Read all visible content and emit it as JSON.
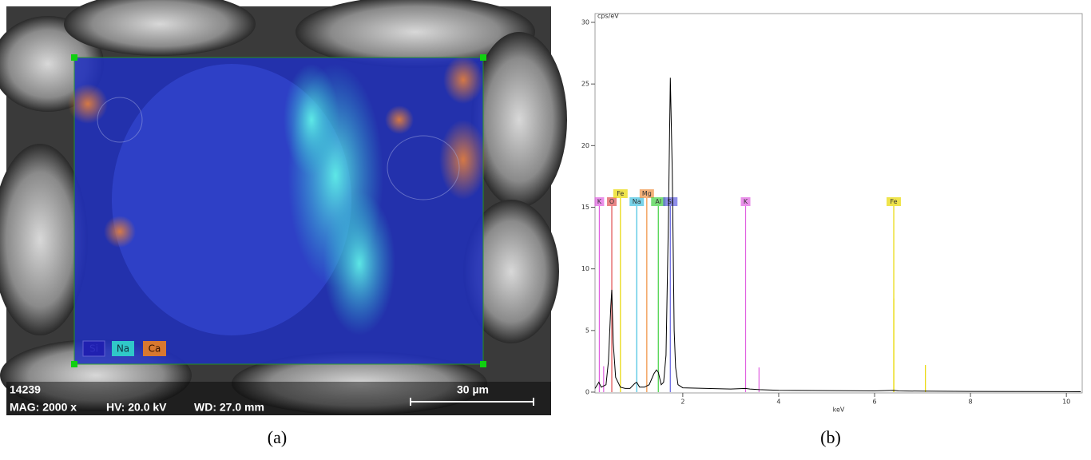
{
  "image_panel": {
    "legend": [
      "Si",
      "Na",
      "Ca"
    ],
    "sample_id": "14239",
    "magnification": "MAG: 2000 x",
    "voltage": "HV: 20.0 kV",
    "working_distance": "WD: 27.0 mm",
    "scale_bar": "30 µm"
  },
  "captions": [
    "(a)",
    "(b)"
  ],
  "chart_data": {
    "type": "line",
    "y_label": "cps/eV",
    "x_label": "keV",
    "xlim": [
      0.17,
      10.33
    ],
    "xticks": [
      2,
      4,
      6,
      8,
      10
    ],
    "ylim": [
      0,
      30
    ],
    "yticks": [
      0,
      5,
      10,
      15,
      20,
      25,
      30
    ],
    "series": [
      {
        "color": "#000000",
        "x": [
          0.17,
          0.25,
          0.3,
          0.4,
          0.45,
          0.5,
          0.52,
          0.55,
          0.6,
          0.7,
          0.8,
          0.9,
          1.0,
          1.04,
          1.1,
          1.2,
          1.3,
          1.4,
          1.45,
          1.49,
          1.55,
          1.6,
          1.65,
          1.7,
          1.74,
          1.78,
          1.82,
          1.85,
          1.9,
          2.0,
          2.5,
          3.0,
          3.31,
          3.4,
          3.6,
          4,
          5,
          6,
          6.4,
          6.5,
          7,
          8,
          9,
          10,
          10.3
        ],
        "values": [
          0.3,
          0.8,
          0.4,
          0.6,
          2.5,
          7,
          8.3,
          4,
          1.2,
          0.4,
          0.3,
          0.3,
          0.7,
          0.8,
          0.4,
          0.4,
          0.6,
          1.5,
          1.8,
          1.6,
          0.6,
          0.8,
          3,
          14,
          25.5,
          18,
          5,
          2,
          0.6,
          0.35,
          0.3,
          0.25,
          0.3,
          0.25,
          0.2,
          0.15,
          0.12,
          0.1,
          0.15,
          0.1,
          0.08,
          0.06,
          0.05,
          0.04,
          0.03
        ]
      }
    ],
    "element_lines": [
      {
        "label": "K",
        "x": 0.26,
        "color": "#e060e0"
      },
      {
        "label": "O",
        "x": 0.52,
        "color": "#e05050"
      },
      {
        "label": "Fe",
        "x": 0.7,
        "color": "#e8d800"
      },
      {
        "label": "Na",
        "x": 1.04,
        "color": "#40c0e0"
      },
      {
        "label": "Mg",
        "x": 1.25,
        "color": "#f09040"
      },
      {
        "label": "Al",
        "x": 1.49,
        "color": "#40d040"
      },
      {
        "label": "Si",
        "x": 1.74,
        "color": "#6060e0"
      },
      {
        "label": "K",
        "x": 3.31,
        "color": "#e060e0"
      },
      {
        "label": "Fe",
        "x": 6.4,
        "color": "#e8d800"
      }
    ],
    "minor_lines": [
      {
        "x": 0.35,
        "values": 2.1,
        "color": "#e060e0"
      },
      {
        "x": 3.59,
        "values": 2.0,
        "color": "#e060e0"
      },
      {
        "x": 6.4,
        "values": 7.6,
        "color": "#e8d800"
      },
      {
        "x": 7.06,
        "values": 2.2,
        "color": "#e8d800"
      }
    ]
  }
}
